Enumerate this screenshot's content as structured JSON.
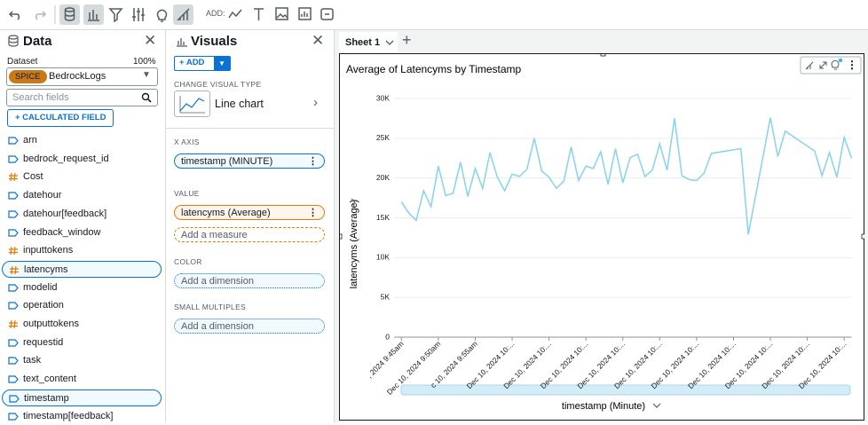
{
  "toolbar": {
    "add_label": "ADD:"
  },
  "data_panel": {
    "title": "Data",
    "dataset_label": "Dataset",
    "dataset_percent": "100%",
    "spice_badge": "SPICE",
    "dataset_name": "BedrockLogs",
    "search_placeholder": "Search fields",
    "calculated_field_button": "+ CALCULATED FIELD",
    "fields": [
      {
        "name": "arn",
        "color": "#0972d3"
      },
      {
        "name": "bedrock_request_id",
        "color": "#0972d3"
      },
      {
        "name": "Cost",
        "color": "#e07b00"
      },
      {
        "name": "datehour",
        "color": "#0972d3"
      },
      {
        "name": "datehour[feedback]",
        "color": "#0972d3"
      },
      {
        "name": "feedback_window",
        "color": "#0972d3"
      },
      {
        "name": "inputtokens",
        "color": "#e07b00"
      },
      {
        "name": "latencyms",
        "color": "#e07b00",
        "selected": true
      },
      {
        "name": "modelid",
        "color": "#0972d3"
      },
      {
        "name": "operation",
        "color": "#0972d3"
      },
      {
        "name": "outputtokens",
        "color": "#e07b00"
      },
      {
        "name": "requestid",
        "color": "#0972d3"
      },
      {
        "name": "task",
        "color": "#0972d3"
      },
      {
        "name": "text_content",
        "color": "#0972d3"
      },
      {
        "name": "timestamp",
        "color": "#0972d3",
        "selected": true
      },
      {
        "name": "timestamp[feedback]",
        "color": "#0972d3"
      }
    ]
  },
  "visuals_panel": {
    "title": "Visuals",
    "add_button": "+ ADD",
    "change_visual_type_label": "CHANGE VISUAL TYPE",
    "visual_type": "Line chart",
    "x_axis_label": "X AXIS",
    "x_axis_field": "timestamp (MINUTE)",
    "value_label": "VALUE",
    "value_field": "latencyms (Average)",
    "add_measure": "Add a measure",
    "color_label": "COLOR",
    "color_placeholder": "Add a dimension",
    "small_multiples_label": "SMALL MULTIPLES",
    "small_multiples_placeholder": "Add a dimension"
  },
  "sheet_tab": "Sheet 1",
  "chart_data": {
    "type": "line",
    "title": "Average of Latencyms by Timestamp",
    "x_label": "timestamp (Minute)",
    "y_label": "latencyms (Average)",
    "color": "#8fd3ea",
    "grid": true,
    "x": [
      "2024-12-10 09:45",
      "2024-12-10 09:46",
      "2024-12-10 09:47",
      "2024-12-10 09:48",
      "2024-12-10 09:49",
      "2024-12-10 09:50",
      "2024-12-10 09:51",
      "2024-12-10 09:52",
      "2024-12-10 09:53",
      "2024-12-10 09:54",
      "2024-12-10 09:55",
      "2024-12-10 09:56",
      "2024-12-10 09:57",
      "2024-12-10 09:58",
      "2024-12-10 09:59",
      "2024-12-10 10:00",
      "2024-12-10 10:01",
      "2024-12-10 10:02",
      "2024-12-10 10:03",
      "2024-12-10 10:04",
      "2024-12-10 10:05",
      "2024-12-10 10:06",
      "2024-12-10 10:07",
      "2024-12-10 10:08",
      "2024-12-10 10:09",
      "2024-12-10 10:10",
      "2024-12-10 10:11",
      "2024-12-10 10:12",
      "2024-12-10 10:13",
      "2024-12-10 10:14",
      "2024-12-10 10:15",
      "2024-12-10 10:16",
      "2024-12-10 10:17",
      "2024-12-10 10:18",
      "2024-12-10 10:19",
      "2024-12-10 10:20",
      "2024-12-10 10:21",
      "2024-12-10 10:22",
      "2024-12-10 10:23",
      "2024-12-10 10:24",
      "2024-12-10 10:25",
      "2024-12-10 10:26",
      "2024-12-10 10:27",
      "2024-12-10 10:31",
      "2024-12-10 10:32",
      "2024-12-10 10:35",
      "2024-12-10 10:36",
      "2024-12-10 10:37",
      "2024-12-10 10:41",
      "2024-12-10 10:42",
      "2024-12-10 10:43",
      "2024-12-10 10:44",
      "2024-12-10 10:45",
      "2024-12-10 10:46"
    ],
    "values": [
      17000,
      15600,
      14700,
      18400,
      16400,
      21500,
      17800,
      18100,
      22000,
      17700,
      21200,
      18700,
      23200,
      20100,
      18400,
      20500,
      20200,
      21100,
      25000,
      20900,
      20100,
      18700,
      19600,
      23900,
      19700,
      21500,
      21200,
      23300,
      19200,
      23700,
      19400,
      22600,
      23000,
      20200,
      21000,
      24300,
      21000,
      27500,
      20300,
      19800,
      19700,
      20600,
      23100,
      23700,
      12900,
      27600,
      22700,
      25900,
      23400,
      20300,
      23200,
      20100,
      25100,
      22500
    ],
    "xlim": [
      "2024-12-10 09:44",
      "2024-12-10 10:46"
    ],
    "xticks": [
      {
        "value": "2024-12-10 09:45",
        "label": ", 2024 9:45am"
      },
      {
        "value": "2024-12-10 09:50",
        "label": "Dec 10, 2024 9:50am"
      },
      {
        "value": "2024-12-10 09:55",
        "label": "c 10, 2024 9:55am"
      },
      {
        "value": "2024-12-10 10:00",
        "label": "Dec 10, 2024 10:..."
      },
      {
        "value": "2024-12-10 10:05",
        "label": "Dec 10, 2024 10:..."
      },
      {
        "value": "2024-12-10 10:10",
        "label": "Dec 10, 2024 10:..."
      },
      {
        "value": "2024-12-10 10:15",
        "label": "Dec 10, 2024 10:..."
      },
      {
        "value": "2024-12-10 10:20",
        "label": "Dec 10, 2024 10:..."
      },
      {
        "value": "2024-12-10 10:25",
        "label": "Dec 10, 2024 10:..."
      },
      {
        "value": "2024-12-10 10:30",
        "label": "Dec 10, 2024 10:..."
      },
      {
        "value": "2024-12-10 10:35",
        "label": "Dec 10, 2024 10:..."
      },
      {
        "value": "2024-12-10 10:40",
        "label": "Dec 10, 2024 10:..."
      },
      {
        "value": "2024-12-10 10:45",
        "label": "Dec 10, 2024 10:..."
      }
    ],
    "ylim": [
      0,
      30000
    ],
    "yticks": [
      0,
      {
        "value": 5000,
        "label": "5K"
      },
      {
        "value": 10000,
        "label": "10K"
      },
      {
        "value": 15000,
        "label": "15K"
      },
      {
        "value": 20000,
        "label": "20K"
      },
      {
        "value": 25000,
        "label": "25K"
      },
      {
        "value": 30000,
        "label": "30K"
      }
    ]
  }
}
